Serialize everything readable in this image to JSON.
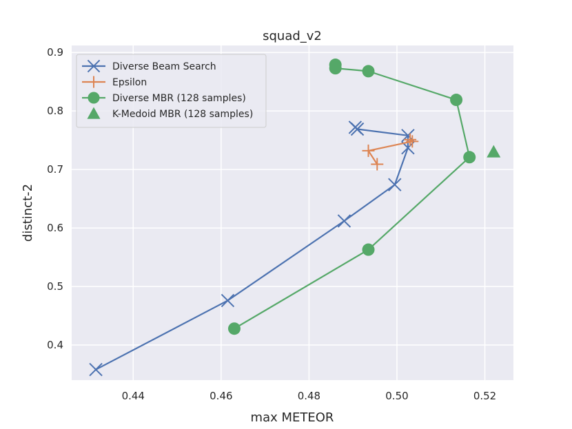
{
  "chart_data": {
    "type": "line",
    "title": "squad_v2",
    "xlabel": "max METEOR",
    "ylabel": "distinct-2",
    "xlim": [
      0.426,
      0.5265
    ],
    "ylim": [
      0.34,
      0.912
    ],
    "xticks": [
      0.44,
      0.46,
      0.48,
      0.5,
      0.52
    ],
    "xtick_labels": [
      "0.44",
      "0.46",
      "0.48",
      "0.50",
      "0.52"
    ],
    "yticks": [
      0.4,
      0.5,
      0.6,
      0.7,
      0.8,
      0.9
    ],
    "ytick_labels": [
      "0.4",
      "0.5",
      "0.6",
      "0.7",
      "0.8",
      "0.9"
    ],
    "grid": true,
    "legend_position": "top-left",
    "background": "#eaeaf2",
    "series": [
      {
        "name": "Diverse Beam Search",
        "marker": "x",
        "color": "#4c72b0",
        "line": true,
        "points": [
          {
            "x": 0.4315,
            "y": 0.358
          },
          {
            "x": 0.4615,
            "y": 0.476
          },
          {
            "x": 0.488,
            "y": 0.612
          },
          {
            "x": 0.4995,
            "y": 0.674
          },
          {
            "x": 0.5025,
            "y": 0.737
          },
          {
            "x": 0.5025,
            "y": 0.758
          },
          {
            "x": 0.491,
            "y": 0.769
          },
          {
            "x": 0.4905,
            "y": 0.772
          }
        ]
      },
      {
        "name": "Epsilon",
        "marker": "+",
        "color": "#dd8452",
        "line": true,
        "points": [
          {
            "x": 0.4955,
            "y": 0.709
          },
          {
            "x": 0.4935,
            "y": 0.732
          },
          {
            "x": 0.5035,
            "y": 0.748
          },
          {
            "x": 0.503,
            "y": 0.751
          }
        ]
      },
      {
        "name": "Diverse MBR (128 samples)",
        "marker": "o",
        "color": "#55a868",
        "line": true,
        "points": [
          {
            "x": 0.463,
            "y": 0.428
          },
          {
            "x": 0.4935,
            "y": 0.563
          },
          {
            "x": 0.5165,
            "y": 0.721
          },
          {
            "x": 0.5135,
            "y": 0.819
          },
          {
            "x": 0.4935,
            "y": 0.868
          },
          {
            "x": 0.486,
            "y": 0.873
          },
          {
            "x": 0.486,
            "y": 0.879
          }
        ]
      },
      {
        "name": "K-Medoid MBR (128 samples)",
        "marker": "^",
        "color": "#55a868",
        "line": false,
        "points": [
          {
            "x": 0.522,
            "y": 0.73
          }
        ]
      }
    ]
  }
}
